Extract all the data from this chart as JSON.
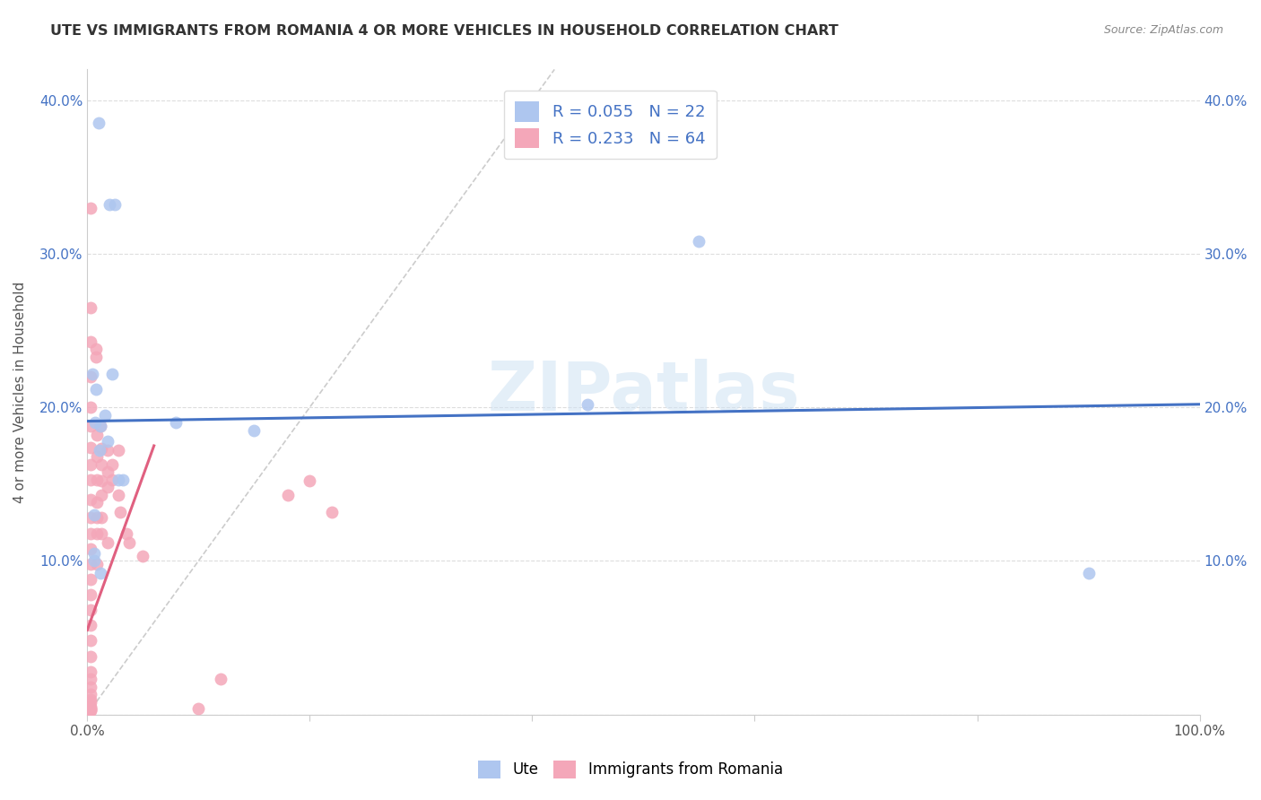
{
  "title": "UTE VS IMMIGRANTS FROM ROMANIA 4 OR MORE VEHICLES IN HOUSEHOLD CORRELATION CHART",
  "source": "Source: ZipAtlas.com",
  "ylabel": "4 or more Vehicles in Household",
  "xlim": [
    0.0,
    1.0
  ],
  "ylim": [
    0.0,
    0.42
  ],
  "xticks": [
    0.0,
    0.2,
    0.4,
    0.6,
    0.8,
    1.0
  ],
  "xticklabels": [
    "0.0%",
    "",
    "",
    "",
    "",
    "100.0%"
  ],
  "yticks": [
    0.0,
    0.1,
    0.2,
    0.3,
    0.4
  ],
  "yticklabels": [
    "",
    "10.0%",
    "20.0%",
    "30.0%",
    "40.0%"
  ],
  "ute_R": 0.055,
  "ute_N": 22,
  "romania_R": 0.233,
  "romania_N": 64,
  "ute_color": "#aec6ef",
  "romania_color": "#f4a7b9",
  "ute_line_color": "#4472c4",
  "romania_line_color": "#e06080",
  "diagonal_color": "#cccccc",
  "legend_text_color": "#4472c4",
  "watermark": "ZIPatlas",
  "ute_line_x0": 0.0,
  "ute_line_y0": 0.191,
  "ute_line_x1": 1.0,
  "ute_line_y1": 0.202,
  "romania_line_x0": 0.0,
  "romania_line_y0": 0.055,
  "romania_line_x1": 0.06,
  "romania_line_y1": 0.175,
  "ute_x": [
    0.01,
    0.02,
    0.025,
    0.005,
    0.008,
    0.007,
    0.012,
    0.018,
    0.022,
    0.028,
    0.032,
    0.006,
    0.011,
    0.016,
    0.006,
    0.006,
    0.012,
    0.15,
    0.45,
    0.9,
    0.55,
    0.08
  ],
  "ute_y": [
    0.385,
    0.332,
    0.332,
    0.222,
    0.212,
    0.19,
    0.188,
    0.178,
    0.222,
    0.153,
    0.153,
    0.13,
    0.172,
    0.195,
    0.1,
    0.105,
    0.092,
    0.185,
    0.202,
    0.092,
    0.308,
    0.19
  ],
  "romania_x": [
    0.003,
    0.003,
    0.003,
    0.003,
    0.003,
    0.003,
    0.003,
    0.003,
    0.003,
    0.003,
    0.003,
    0.003,
    0.003,
    0.003,
    0.003,
    0.003,
    0.003,
    0.003,
    0.003,
    0.003,
    0.003,
    0.003,
    0.003,
    0.003,
    0.003,
    0.003,
    0.003,
    0.003,
    0.003,
    0.003,
    0.008,
    0.008,
    0.009,
    0.009,
    0.009,
    0.009,
    0.009,
    0.009,
    0.009,
    0.012,
    0.013,
    0.013,
    0.013,
    0.013,
    0.013,
    0.013,
    0.018,
    0.018,
    0.018,
    0.018,
    0.022,
    0.022,
    0.028,
    0.028,
    0.03,
    0.035,
    0.038,
    0.05,
    0.12,
    0.18,
    0.2,
    0.22,
    0.1,
    0.003
  ],
  "romania_y": [
    0.265,
    0.243,
    0.22,
    0.2,
    0.188,
    0.174,
    0.163,
    0.153,
    0.14,
    0.128,
    0.118,
    0.108,
    0.098,
    0.088,
    0.078,
    0.068,
    0.058,
    0.048,
    0.038,
    0.028,
    0.023,
    0.018,
    0.013,
    0.01,
    0.008,
    0.005,
    0.004,
    0.004,
    0.003,
    0.003,
    0.238,
    0.233,
    0.182,
    0.168,
    0.153,
    0.138,
    0.128,
    0.118,
    0.098,
    0.188,
    0.173,
    0.163,
    0.152,
    0.143,
    0.128,
    0.118,
    0.172,
    0.158,
    0.148,
    0.112,
    0.163,
    0.153,
    0.172,
    0.143,
    0.132,
    0.118,
    0.112,
    0.103,
    0.023,
    0.143,
    0.152,
    0.132,
    0.004,
    0.33
  ]
}
